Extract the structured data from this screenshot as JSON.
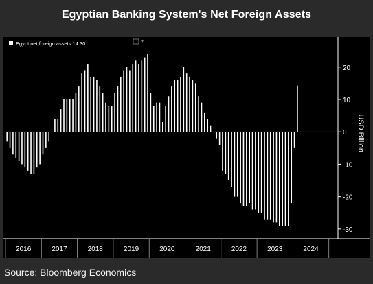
{
  "title": "Egyptian Banking System's Net Foreign Assets",
  "source": "Source: Bloomberg Economics",
  "legend": {
    "label": "Egypt net foreign assets",
    "value": "14.30"
  },
  "chart_data": {
    "type": "bar",
    "title": "Egyptian Banking System's Net Foreign Assets",
    "ylabel": "USD Billion",
    "xlabel": "",
    "ylim": [
      -33,
      28
    ],
    "yticks": [
      20,
      10,
      0,
      -10,
      -20,
      -30
    ],
    "year_labels": [
      "2016",
      "2017",
      "2018",
      "2019",
      "2020",
      "2021",
      "2022",
      "2023",
      "2024"
    ],
    "legend_position": "top-left",
    "grid": false,
    "colors": {
      "bar": "#ffffff",
      "background": "#000000",
      "axis": "#ffffff"
    },
    "series": [
      {
        "name": "Egypt net foreign assets",
        "start": "2016-01",
        "frequency": "monthly",
        "values": [
          -3,
          -5,
          -7,
          -8,
          -9,
          -10,
          -11,
          -12,
          -13,
          -13,
          -11,
          -10,
          -7,
          -5,
          -3,
          0,
          4,
          4,
          7,
          10,
          10,
          10,
          10,
          12,
          14,
          18,
          19,
          21,
          17,
          17,
          16,
          14,
          12,
          9,
          8,
          8,
          12,
          14,
          17,
          19,
          20,
          19,
          21,
          22,
          21,
          22,
          23,
          24,
          12,
          8,
          9,
          9,
          3,
          8,
          11,
          14,
          16,
          16,
          17,
          20,
          18,
          17,
          16,
          15,
          11,
          9,
          6,
          4,
          2,
          0,
          -2,
          -4,
          -12,
          -13,
          -15,
          -17,
          -20,
          -20,
          -22,
          -23,
          -23,
          -22,
          -24,
          -24,
          -25,
          -25,
          -27,
          -27,
          -27,
          -28,
          -28,
          -29,
          -29,
          -29,
          -29,
          -22,
          -5,
          14.3
        ]
      }
    ]
  }
}
